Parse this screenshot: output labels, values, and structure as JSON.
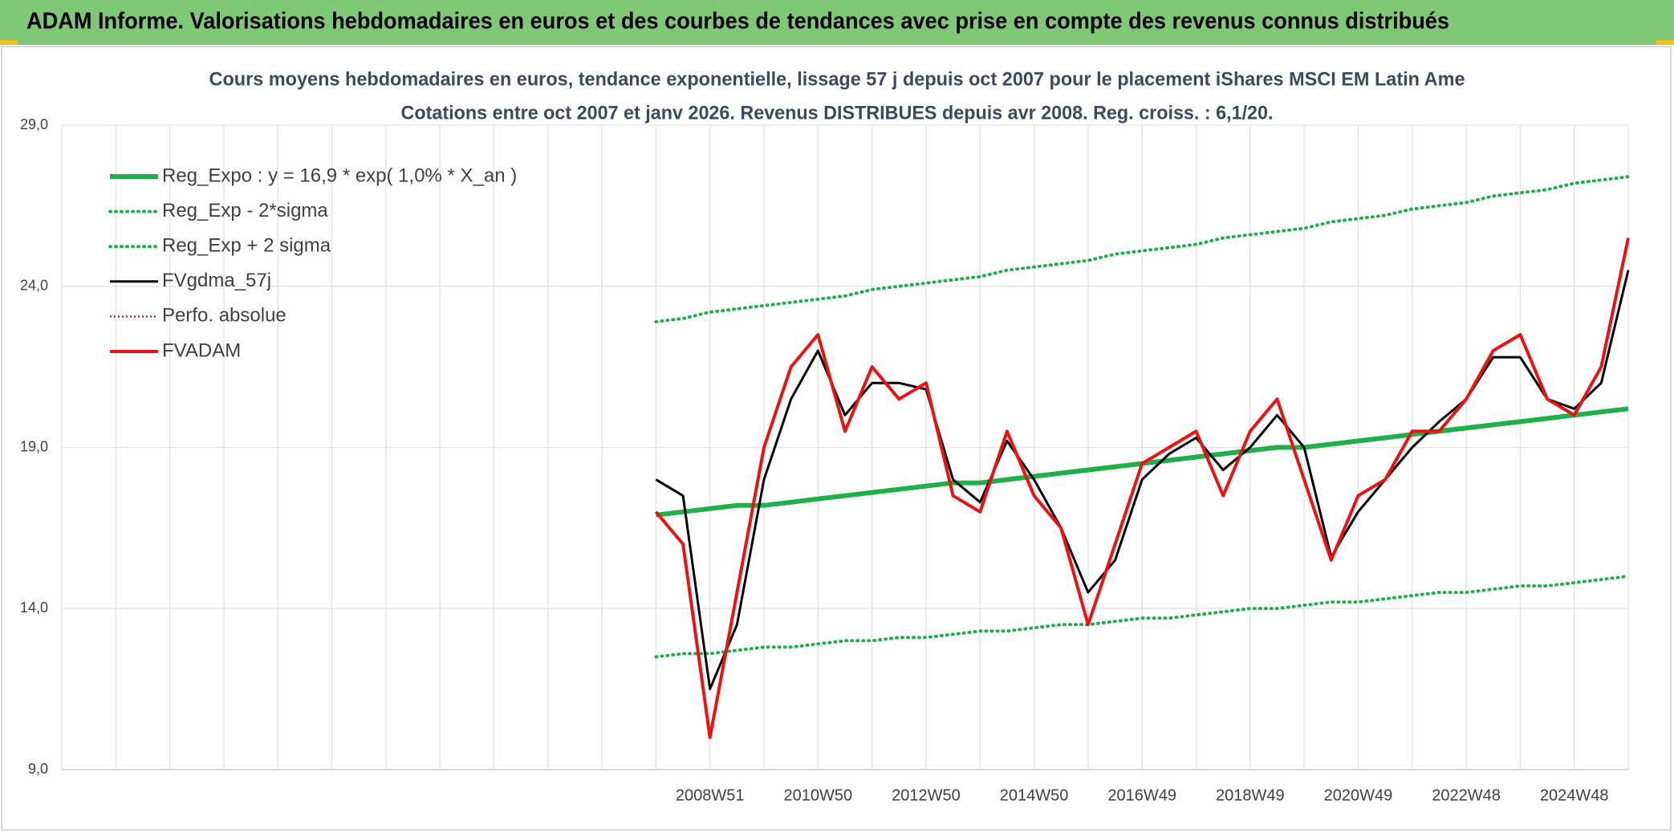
{
  "header": "ADAM Informe. Valorisations hebdomadaires en euros et des courbes de tendances avec prise en compte des revenus connus distribués",
  "chart_data": {
    "type": "line",
    "title": "Cours moyens hebdomadaires en euros, tendance exponentielle, lissage 57 j depuis oct 2007 pour le placement iShares MSCI EM Latin Ame",
    "subtitle": "Cotations entre oct 2007 et janv 2026. Revenus DISTRIBUES depuis avr 2008. Reg. croiss. : 6,1/20.",
    "categories": [
      null,
      null,
      null,
      null,
      null,
      null,
      null,
      null,
      null,
      null,
      null,
      null,
      null,
      null,
      null,
      null,
      null,
      null,
      null,
      null,
      null,
      null,
      null,
      null,
      "2008W51",
      null,
      null,
      null,
      "2010W50",
      null,
      null,
      null,
      "2012W50",
      null,
      null,
      null,
      "2014W50",
      null,
      null,
      null,
      "2016W49",
      null,
      null,
      null,
      "2018W49",
      null,
      null,
      null,
      "2020W49",
      null,
      null,
      null,
      "2022W48",
      null,
      null,
      null,
      "2024W48",
      null,
      null
    ],
    "ylim": [
      9,
      29
    ],
    "yticks": [
      {
        "value": 9,
        "label": "9,0"
      },
      {
        "value": 14,
        "label": "14,0"
      },
      {
        "value": 19,
        "label": "19,0"
      },
      {
        "value": 24,
        "label": "24,0"
      },
      {
        "value": 29,
        "label": "29,0"
      }
    ],
    "grid": true,
    "legend": "top-left",
    "series": [
      {
        "name": "Reg_Expo : y = 16,9 * exp( 1,0% *  X_an )",
        "color": "#1fb04b",
        "line_style": "thick",
        "values": [
          null,
          null,
          null,
          null,
          null,
          null,
          null,
          null,
          null,
          null,
          null,
          null,
          null,
          null,
          null,
          null,
          null,
          null,
          null,
          null,
          null,
          null,
          16.9,
          17.0,
          17.1,
          17.2,
          17.2,
          17.3,
          17.4,
          17.5,
          17.6,
          17.7,
          17.8,
          17.9,
          17.9,
          18.0,
          18.1,
          18.2,
          18.3,
          18.4,
          18.5,
          18.6,
          18.7,
          18.8,
          18.9,
          19.0,
          19.0,
          19.1,
          19.2,
          19.3,
          19.4,
          19.5,
          19.6,
          19.7,
          19.8,
          19.9,
          20.0,
          20.1,
          20.2
        ]
      },
      {
        "name": "Reg_Exp - 2*sigma",
        "color": "#1fb04b",
        "line_style": "dotted",
        "values": [
          null,
          null,
          null,
          null,
          null,
          null,
          null,
          null,
          null,
          null,
          null,
          null,
          null,
          null,
          null,
          null,
          null,
          null,
          null,
          null,
          null,
          null,
          12.5,
          12.6,
          12.6,
          12.7,
          12.8,
          12.8,
          12.9,
          13.0,
          13.0,
          13.1,
          13.1,
          13.2,
          13.3,
          13.3,
          13.4,
          13.5,
          13.5,
          13.6,
          13.7,
          13.7,
          13.8,
          13.9,
          14.0,
          14.0,
          14.1,
          14.2,
          14.2,
          14.3,
          14.4,
          14.5,
          14.5,
          14.6,
          14.7,
          14.7,
          14.8,
          14.9,
          15.0
        ]
      },
      {
        "name": "Reg_Exp + 2 sigma",
        "color": "#1fb04b",
        "line_style": "dotted",
        "values": [
          null,
          null,
          null,
          null,
          null,
          null,
          null,
          null,
          null,
          null,
          null,
          null,
          null,
          null,
          null,
          null,
          null,
          null,
          null,
          null,
          null,
          null,
          22.9,
          23.0,
          23.2,
          23.3,
          23.4,
          23.5,
          23.6,
          23.7,
          23.9,
          24.0,
          24.1,
          24.2,
          24.3,
          24.5,
          24.6,
          24.7,
          24.8,
          25.0,
          25.1,
          25.2,
          25.3,
          25.5,
          25.6,
          25.7,
          25.8,
          26.0,
          26.1,
          26.2,
          26.4,
          26.5,
          26.6,
          26.8,
          26.9,
          27.0,
          27.2,
          27.3,
          27.4
        ]
      },
      {
        "name": "FVgdma_57j",
        "color": "#000000",
        "line_style": "solid",
        "values": [
          null,
          null,
          null,
          null,
          null,
          null,
          null,
          null,
          null,
          null,
          null,
          null,
          null,
          null,
          null,
          null,
          null,
          null,
          null,
          null,
          null,
          null,
          18,
          17.5,
          11.5,
          13.5,
          18,
          20.5,
          22,
          20,
          21,
          21,
          20.8,
          18,
          17.3,
          19.2,
          18,
          16.5,
          14.5,
          15.5,
          18,
          18.8,
          19.3,
          18.3,
          19,
          20,
          19,
          15.6,
          17,
          18,
          19,
          19.8,
          20.5,
          21.8,
          21.8,
          20.5,
          20.2,
          21,
          24.5
        ]
      },
      {
        "name": "Perfo. absolue",
        "color": "#e41a1c",
        "line_style": "dotted-thin",
        "values": [
          null,
          null,
          null,
          null,
          null,
          null,
          null,
          null,
          null,
          null,
          null,
          null,
          null,
          null,
          null,
          null,
          null,
          null,
          null,
          null,
          null,
          null,
          null,
          null,
          null,
          null,
          null,
          null,
          null,
          null,
          null,
          null,
          null,
          null,
          null,
          null,
          null,
          null,
          null,
          null,
          null,
          null,
          null,
          null,
          null,
          null,
          null,
          null,
          null,
          null,
          null,
          null,
          null,
          null,
          null,
          null,
          null,
          null,
          null
        ]
      },
      {
        "name": "FVADAM",
        "color": "#ee1111",
        "line_style": "medium",
        "values": [
          null,
          null,
          null,
          null,
          null,
          null,
          null,
          null,
          null,
          null,
          null,
          null,
          null,
          null,
          null,
          null,
          null,
          null,
          null,
          null,
          null,
          null,
          17,
          16,
          10,
          14.5,
          19,
          21.5,
          22.5,
          19.5,
          21.5,
          20.5,
          21,
          17.5,
          17,
          19.5,
          17.5,
          16.5,
          13.5,
          16,
          18.5,
          19,
          19.5,
          17.5,
          19.5,
          20.5,
          18,
          15.5,
          17.5,
          18,
          19.5,
          19.5,
          20.5,
          22,
          22.5,
          20.5,
          20,
          21.5,
          25.5
        ]
      }
    ]
  }
}
